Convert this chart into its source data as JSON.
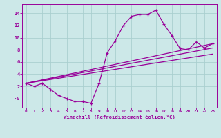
{
  "background_color": "#cce8e8",
  "grid_color": "#aacfcf",
  "line_color": "#990099",
  "xlabel": "Windchill (Refroidissement éolien,°C)",
  "xlim_min": -0.5,
  "xlim_max": 23.5,
  "ylim_min": -1.5,
  "ylim_max": 15.5,
  "xticks": [
    0,
    1,
    2,
    3,
    4,
    5,
    6,
    7,
    8,
    9,
    10,
    11,
    12,
    13,
    14,
    15,
    16,
    17,
    18,
    19,
    20,
    21,
    22,
    23
  ],
  "yticks": [
    0,
    2,
    4,
    6,
    8,
    10,
    12,
    14
  ],
  "ytick_labels": [
    "-0",
    "2",
    "4",
    "6",
    "8",
    "10",
    "12",
    "14"
  ],
  "jagged_x": [
    0,
    1,
    2,
    3,
    4,
    5,
    6,
    7,
    8,
    9,
    10,
    11,
    12,
    13,
    14,
    15,
    16,
    17,
    18,
    19,
    20,
    21,
    22,
    23
  ],
  "jagged_y": [
    2.5,
    2.0,
    2.5,
    1.5,
    0.5,
    0.0,
    -0.5,
    -0.5,
    -0.8,
    2.5,
    7.5,
    9.5,
    12.0,
    13.5,
    13.8,
    13.8,
    14.5,
    12.2,
    10.3,
    8.2,
    8.0,
    9.3,
    8.3,
    9.0
  ],
  "trend1_y_end": 9.0,
  "trend2_y_end": 8.3,
  "trend3_y_end": 7.3,
  "trend_x_start": 0,
  "trend_y_start": 2.5,
  "trend_x_end": 23
}
